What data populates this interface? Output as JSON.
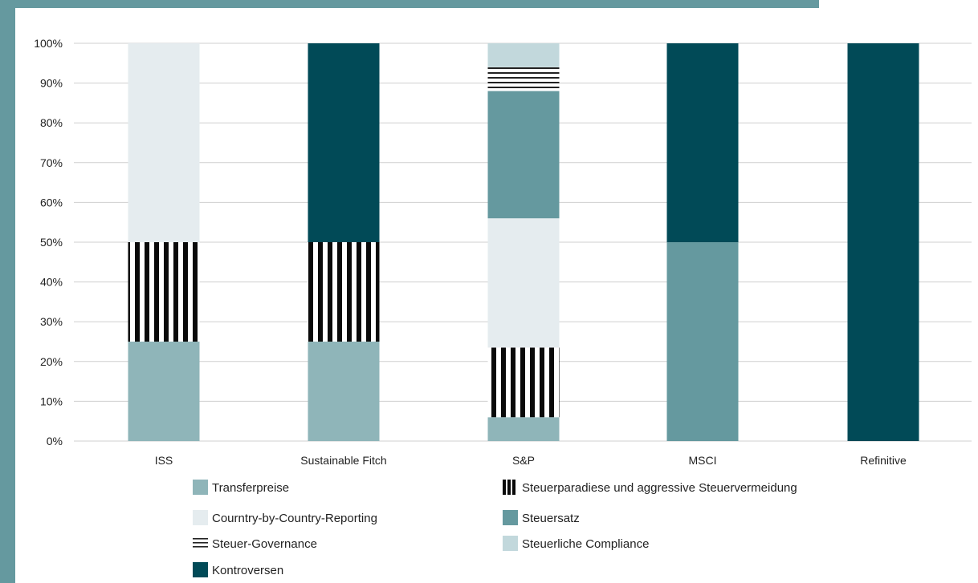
{
  "colors": {
    "transfer": "#8fb5b9",
    "cbcr": "#e5ecef",
    "steuersatz": "#65999f",
    "compliance": "#c2d8dc",
    "kontroversen": "#014a57",
    "stripes": "#0a0a0a",
    "frame": "#65999f"
  },
  "chart_data": {
    "type": "bar",
    "stacked": true,
    "categories": [
      "ISS",
      "Sustainable Fitch",
      "S&P",
      "MSCI",
      "Refinitive"
    ],
    "yticks": [
      "0%",
      "10%",
      "20%",
      "30%",
      "40%",
      "50%",
      "60%",
      "70%",
      "80%",
      "90%",
      "100%"
    ],
    "ylim": [
      0,
      100
    ],
    "grid": true,
    "legend_position": "bottom",
    "series": [
      {
        "key": "transfer",
        "name": "Transferpreise",
        "pattern": "solid",
        "values": [
          25,
          25,
          6,
          0,
          0
        ]
      },
      {
        "key": "steuerparadiese",
        "name": "Steuerparadiese und aggressive Steuervermeidung",
        "pattern": "vertical-stripes",
        "values": [
          25,
          25,
          17.5,
          0,
          0
        ]
      },
      {
        "key": "cbcr",
        "name": "Courntry-by-Country-Reporting",
        "pattern": "solid",
        "values": [
          50,
          0,
          32.5,
          0,
          0
        ]
      },
      {
        "key": "steuersatz",
        "name": "Steuersatz",
        "pattern": "solid",
        "values": [
          0,
          0,
          32,
          50,
          0
        ]
      },
      {
        "key": "governance",
        "name": "Steuer-Governance",
        "pattern": "horizontal-lines",
        "values": [
          0,
          0,
          6,
          0,
          0
        ]
      },
      {
        "key": "compliance",
        "name": "Steuerliche Compliance",
        "pattern": "solid",
        "values": [
          0,
          0,
          6,
          0,
          0
        ]
      },
      {
        "key": "kontroversen",
        "name": "Kontroversen",
        "pattern": "solid",
        "values": [
          0,
          50,
          0,
          50,
          100
        ]
      }
    ],
    "legend": [
      {
        "key": "transfer",
        "name": "Transferpreise"
      },
      {
        "key": "steuerparadiese",
        "name": "Steuerparadiese und aggressive Steuervermeidung"
      },
      {
        "key": "cbcr",
        "name": "Courntry-by-Country-Reporting"
      },
      {
        "key": "steuersatz",
        "name": "Steuersatz"
      },
      {
        "key": "governance",
        "name": "Steuer-Governance"
      },
      {
        "key": "compliance",
        "name": "Steuerliche Compliance"
      },
      {
        "key": "kontroversen",
        "name": "Kontroversen"
      }
    ]
  }
}
